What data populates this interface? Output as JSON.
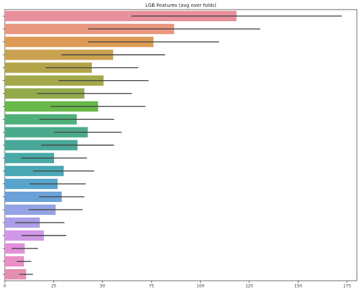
{
  "chart_data": {
    "type": "barh",
    "title": "LGB Features (avg over folds)",
    "categories": [
      null,
      null,
      null,
      null,
      null,
      null,
      null,
      null,
      null,
      null,
      null,
      null,
      null,
      null,
      null,
      null,
      null,
      null,
      null,
      null,
      null
    ],
    "values": [
      118.5,
      86.6,
      76,
      55.4,
      44.5,
      50.5,
      40.7,
      47.7,
      36.8,
      42.4,
      37.2,
      25.2,
      30.1,
      27,
      29.1,
      26,
      17.9,
      20,
      10.2,
      9.8,
      10.9
    ],
    "errors": [
      53.8,
      44,
      33.5,
      26.5,
      23.7,
      23,
      24.2,
      24.2,
      19.1,
      17.3,
      18.6,
      16.8,
      15.6,
      14.4,
      11.6,
      13.8,
      12.6,
      11.4,
      6.7,
      3.7,
      3.5
    ],
    "colors": [
      "#e8909c",
      "#e8977f",
      "#dd9c55",
      "#c9a24f",
      "#b3a44a",
      "#a3a84a",
      "#93aa4c",
      "#69b84a",
      "#4fb07a",
      "#4caa8c",
      "#4aa89a",
      "#49a9a6",
      "#4aa8b6",
      "#58a4cc",
      "#6aa1d8",
      "#93a3e3",
      "#ad9ee8",
      "#d197e8",
      "#e290da",
      "#e88fc6",
      "#e58fb0"
    ],
    "error_color": "#444444",
    "xlim": [
      0,
      180
    ],
    "xticks": [
      0,
      25,
      50,
      75,
      100,
      125,
      150,
      175
    ]
  }
}
